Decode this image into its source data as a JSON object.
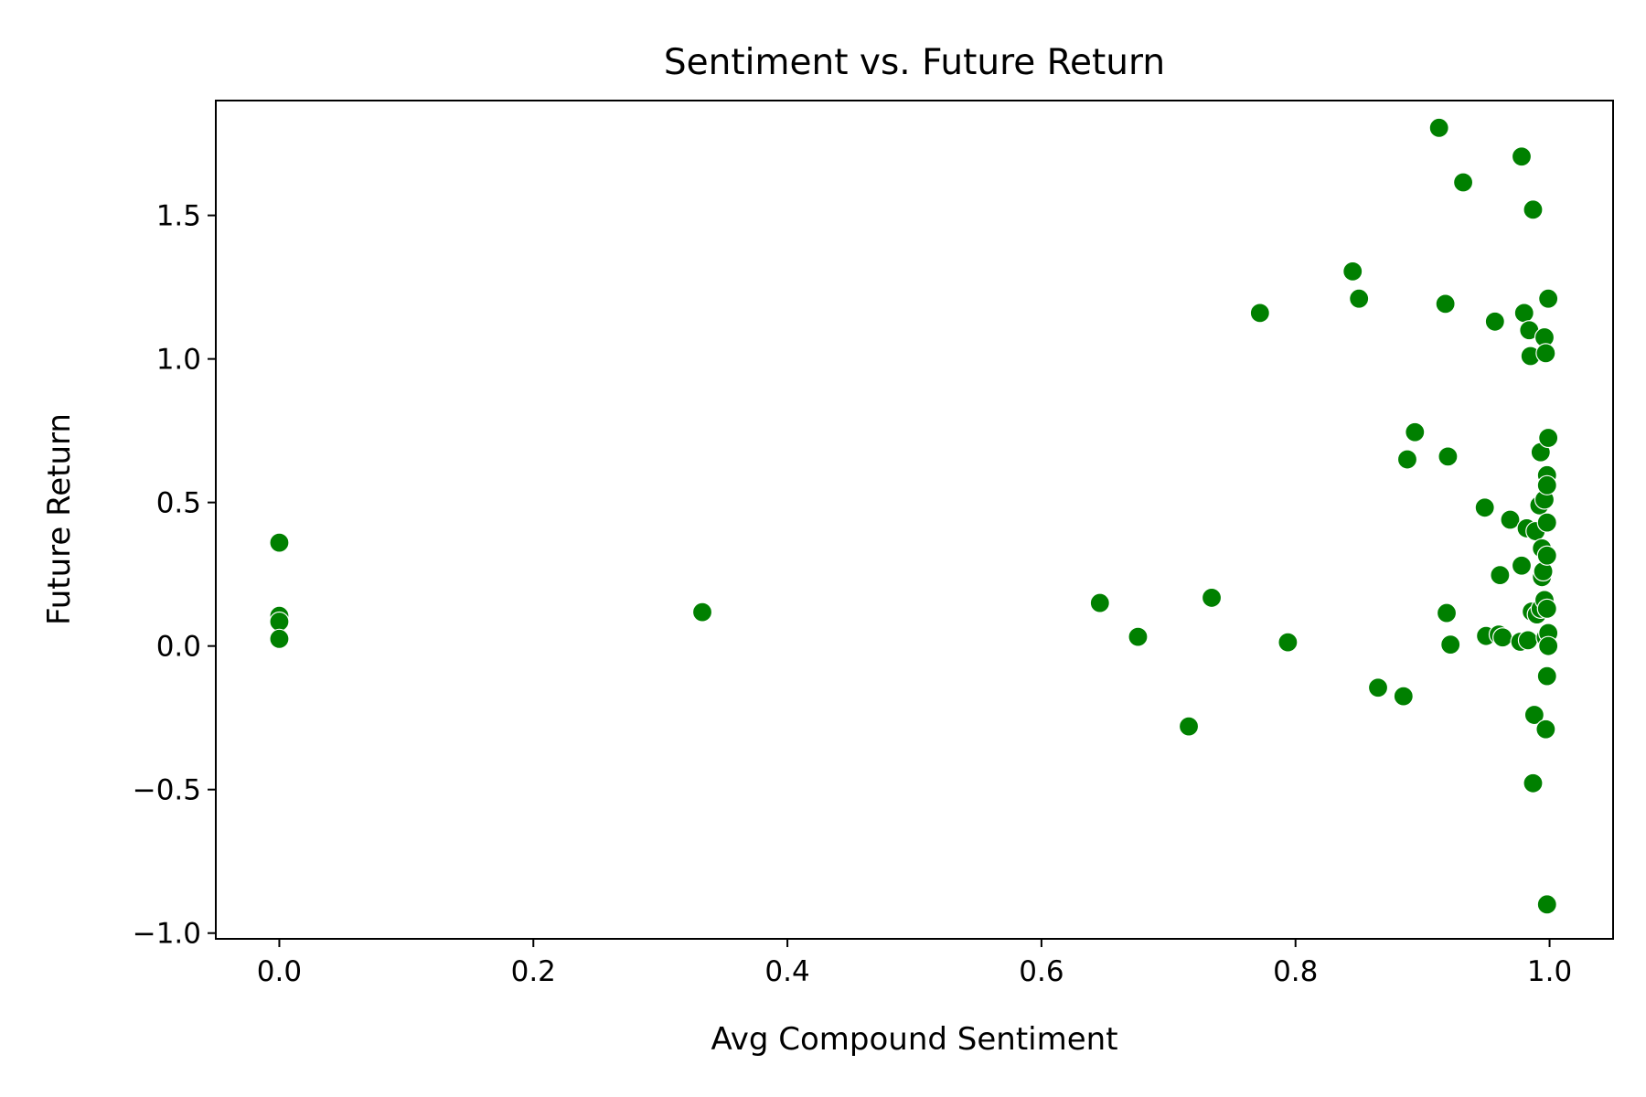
{
  "chart_data": {
    "type": "scatter",
    "title": "Sentiment vs. Future Return",
    "xlabel": "Avg Compound Sentiment",
    "ylabel": "Future Return",
    "xlim": [
      -0.05,
      1.05
    ],
    "ylim": [
      -1.02,
      1.9
    ],
    "xticks": [
      0.0,
      0.2,
      0.4,
      0.6,
      0.8,
      1.0
    ],
    "xtick_labels": [
      "0.0",
      "0.2",
      "0.4",
      "0.6",
      "0.8",
      "1.0"
    ],
    "yticks": [
      -1.0,
      -0.5,
      0.0,
      0.5,
      1.0,
      1.5
    ],
    "ytick_labels": [
      "−1.0",
      "−0.5",
      "0.0",
      "0.5",
      "1.0",
      "1.5"
    ],
    "grid": false,
    "marker_color": "#008000",
    "marker_edge_color": "#ffffff",
    "points": [
      {
        "x": 0.0,
        "y": 0.36
      },
      {
        "x": 0.0,
        "y": 0.105
      },
      {
        "x": 0.0,
        "y": 0.085
      },
      {
        "x": 0.0,
        "y": 0.025
      },
      {
        "x": 0.333,
        "y": 0.118
      },
      {
        "x": 0.646,
        "y": 0.15
      },
      {
        "x": 0.676,
        "y": 0.032
      },
      {
        "x": 0.716,
        "y": -0.28
      },
      {
        "x": 0.734,
        "y": 0.168
      },
      {
        "x": 0.772,
        "y": 1.16
      },
      {
        "x": 0.794,
        "y": 0.013
      },
      {
        "x": 0.845,
        "y": 1.305
      },
      {
        "x": 0.85,
        "y": 1.21
      },
      {
        "x": 0.865,
        "y": -0.145
      },
      {
        "x": 0.885,
        "y": -0.175
      },
      {
        "x": 0.888,
        "y": 0.65
      },
      {
        "x": 0.894,
        "y": 0.745
      },
      {
        "x": 0.913,
        "y": 1.805
      },
      {
        "x": 0.918,
        "y": 1.192
      },
      {
        "x": 0.919,
        "y": 0.115
      },
      {
        "x": 0.92,
        "y": 0.66
      },
      {
        "x": 0.922,
        "y": 0.005
      },
      {
        "x": 0.932,
        "y": 1.615
      },
      {
        "x": 0.949,
        "y": 0.482
      },
      {
        "x": 0.95,
        "y": 0.035
      },
      {
        "x": 0.957,
        "y": 1.13
      },
      {
        "x": 0.96,
        "y": 0.04
      },
      {
        "x": 0.961,
        "y": 0.247
      },
      {
        "x": 0.963,
        "y": 0.03
      },
      {
        "x": 0.969,
        "y": 0.44
      },
      {
        "x": 0.977,
        "y": 0.015
      },
      {
        "x": 0.978,
        "y": 1.705
      },
      {
        "x": 0.978,
        "y": 0.28
      },
      {
        "x": 0.98,
        "y": 1.16
      },
      {
        "x": 0.982,
        "y": 0.41
      },
      {
        "x": 0.983,
        "y": 0.02
      },
      {
        "x": 0.984,
        "y": 1.1
      },
      {
        "x": 0.985,
        "y": 1.01
      },
      {
        "x": 0.986,
        "y": 0.12
      },
      {
        "x": 0.987,
        "y": 1.52
      },
      {
        "x": 0.987,
        "y": -0.478
      },
      {
        "x": 0.988,
        "y": -0.24
      },
      {
        "x": 0.989,
        "y": 0.4
      },
      {
        "x": 0.99,
        "y": 0.11
      },
      {
        "x": 0.992,
        "y": 0.49
      },
      {
        "x": 0.993,
        "y": 0.675
      },
      {
        "x": 0.993,
        "y": 0.13
      },
      {
        "x": 0.994,
        "y": 0.34
      },
      {
        "x": 0.994,
        "y": 0.24
      },
      {
        "x": 0.995,
        "y": 0.26
      },
      {
        "x": 0.996,
        "y": 1.075
      },
      {
        "x": 0.996,
        "y": 0.51
      },
      {
        "x": 0.996,
        "y": 0.16
      },
      {
        "x": 0.997,
        "y": 1.02
      },
      {
        "x": 0.997,
        "y": 0.03
      },
      {
        "x": 0.997,
        "y": -0.29
      },
      {
        "x": 0.998,
        "y": 0.595
      },
      {
        "x": 0.998,
        "y": 0.56
      },
      {
        "x": 0.998,
        "y": 0.43
      },
      {
        "x": 0.998,
        "y": 0.315
      },
      {
        "x": 0.998,
        "y": 0.13
      },
      {
        "x": 0.998,
        "y": -0.105
      },
      {
        "x": 0.998,
        "y": -0.9
      },
      {
        "x": 0.999,
        "y": 1.21
      },
      {
        "x": 0.999,
        "y": 0.725
      },
      {
        "x": 0.999,
        "y": 0.045
      },
      {
        "x": 0.999,
        "y": 0.0
      }
    ]
  }
}
